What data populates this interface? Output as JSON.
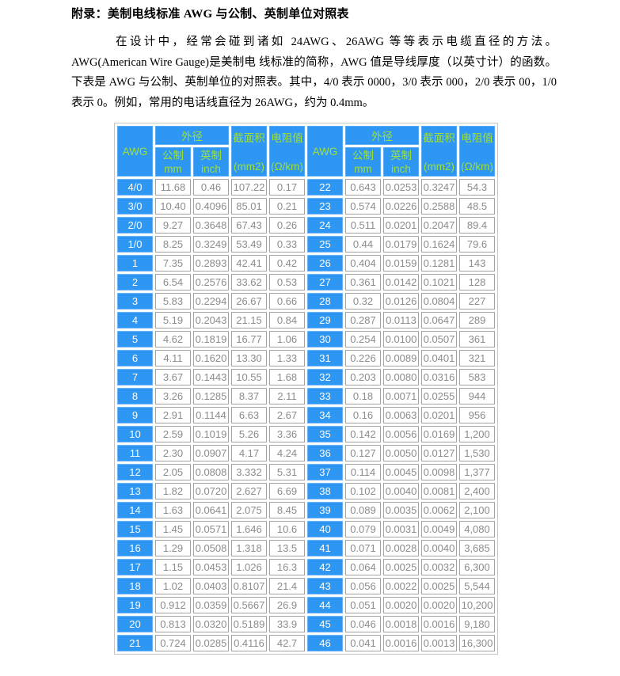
{
  "page": {
    "title": "附录：美制电线标准 AWG 与公制、英制单位对照表",
    "paragraph": "在设计中，经常会碰到诸如 24AWG、26AWG 等等表示电缆直径的方法。AWG(American Wire Gauge)是美制电 线标准的简称，AWG 值是导线厚度（以英寸计）的函数。下表是 AWG 与公制、英制单位的对照表。其中，4/0 表示 0000，3/0 表示 000，2/0 表示 00，1/0 表示 0。例如，常用的电话线直径为 26AWG，约为 0.4mm。"
  },
  "colors": {
    "header_blue": "#2e96f3",
    "header_text_green": "#9ee03c",
    "awg_cell_text": "#ffffff",
    "data_text_gray": "#8c8c8c",
    "cell_border_gray": "#a3a3a3",
    "table_outer_border": "#c6c6c6"
  },
  "table": {
    "header": {
      "awg": "AWG",
      "outer_diameter": "外径",
      "metric_label": "公制",
      "metric_unit": "mm",
      "imperial_label": "英制",
      "imperial_unit": "inch",
      "cross_section_label": "截面积",
      "cross_section_unit": "(mm2)",
      "resistance_label": "电阻值",
      "resistance_unit": "(Ω/km)"
    },
    "left_rows": [
      {
        "awg": "4/0",
        "mm": "11.68",
        "inch": "0.46",
        "mm2": "107.22",
        "ohm_per_km": "0.17"
      },
      {
        "awg": "3/0",
        "mm": "10.40",
        "inch": "0.4096",
        "mm2": "85.01",
        "ohm_per_km": "0.21"
      },
      {
        "awg": "2/0",
        "mm": "9.27",
        "inch": "0.3648",
        "mm2": "67.43",
        "ohm_per_km": "0.26"
      },
      {
        "awg": "1/0",
        "mm": "8.25",
        "inch": "0.3249",
        "mm2": "53.49",
        "ohm_per_km": "0.33"
      },
      {
        "awg": "1",
        "mm": "7.35",
        "inch": "0.2893",
        "mm2": "42.41",
        "ohm_per_km": "0.42"
      },
      {
        "awg": "2",
        "mm": "6.54",
        "inch": "0.2576",
        "mm2": "33.62",
        "ohm_per_km": "0.53"
      },
      {
        "awg": "3",
        "mm": "5.83",
        "inch": "0.2294",
        "mm2": "26.67",
        "ohm_per_km": "0.66"
      },
      {
        "awg": "4",
        "mm": "5.19",
        "inch": "0.2043",
        "mm2": "21.15",
        "ohm_per_km": "0.84"
      },
      {
        "awg": "5",
        "mm": "4.62",
        "inch": "0.1819",
        "mm2": "16.77",
        "ohm_per_km": "1.06"
      },
      {
        "awg": "6",
        "mm": "4.11",
        "inch": "0.1620",
        "mm2": "13.30",
        "ohm_per_km": "1.33"
      },
      {
        "awg": "7",
        "mm": "3.67",
        "inch": "0.1443",
        "mm2": "10.55",
        "ohm_per_km": "1.68"
      },
      {
        "awg": "8",
        "mm": "3.26",
        "inch": "0.1285",
        "mm2": "8.37",
        "ohm_per_km": "2.11"
      },
      {
        "awg": "9",
        "mm": "2.91",
        "inch": "0.1144",
        "mm2": "6.63",
        "ohm_per_km": "2.67"
      },
      {
        "awg": "10",
        "mm": "2.59",
        "inch": "0.1019",
        "mm2": "5.26",
        "ohm_per_km": "3.36"
      },
      {
        "awg": "11",
        "mm": "2.30",
        "inch": "0.0907",
        "mm2": "4.17",
        "ohm_per_km": "4.24"
      },
      {
        "awg": "12",
        "mm": "2.05",
        "inch": "0.0808",
        "mm2": "3.332",
        "ohm_per_km": "5.31"
      },
      {
        "awg": "13",
        "mm": "1.82",
        "inch": "0.0720",
        "mm2": "2.627",
        "ohm_per_km": "6.69"
      },
      {
        "awg": "14",
        "mm": "1.63",
        "inch": "0.0641",
        "mm2": "2.075",
        "ohm_per_km": "8.45"
      },
      {
        "awg": "15",
        "mm": "1.45",
        "inch": "0.0571",
        "mm2": "1.646",
        "ohm_per_km": "10.6"
      },
      {
        "awg": "16",
        "mm": "1.29",
        "inch": "0.0508",
        "mm2": "1.318",
        "ohm_per_km": "13.5"
      },
      {
        "awg": "17",
        "mm": "1.15",
        "inch": "0.0453",
        "mm2": "1.026",
        "ohm_per_km": "16.3"
      },
      {
        "awg": "18",
        "mm": "1.02",
        "inch": "0.0403",
        "mm2": "0.8107",
        "ohm_per_km": "21.4"
      },
      {
        "awg": "19",
        "mm": "0.912",
        "inch": "0.0359",
        "mm2": "0.5667",
        "ohm_per_km": "26.9"
      },
      {
        "awg": "20",
        "mm": "0.813",
        "inch": "0.0320",
        "mm2": "0.5189",
        "ohm_per_km": "33.9"
      },
      {
        "awg": "21",
        "mm": "0.724",
        "inch": "0.0285",
        "mm2": "0.4116",
        "ohm_per_km": "42.7"
      }
    ],
    "right_rows": [
      {
        "awg": "22",
        "mm": "0.643",
        "inch": "0.0253",
        "mm2": "0.3247",
        "ohm_per_km": "54.3"
      },
      {
        "awg": "23",
        "mm": "0.574",
        "inch": "0.0226",
        "mm2": "0.2588",
        "ohm_per_km": "48.5"
      },
      {
        "awg": "24",
        "mm": "0.511",
        "inch": "0.0201",
        "mm2": "0.2047",
        "ohm_per_km": "89.4"
      },
      {
        "awg": "25",
        "mm": "0.44",
        "inch": "0.0179",
        "mm2": "0.1624",
        "ohm_per_km": "79.6"
      },
      {
        "awg": "26",
        "mm": "0.404",
        "inch": "0.0159",
        "mm2": "0.1281",
        "ohm_per_km": "143"
      },
      {
        "awg": "27",
        "mm": "0.361",
        "inch": "0.0142",
        "mm2": "0.1021",
        "ohm_per_km": "128"
      },
      {
        "awg": "28",
        "mm": "0.32",
        "inch": "0.0126",
        "mm2": "0.0804",
        "ohm_per_km": "227"
      },
      {
        "awg": "29",
        "mm": "0.287",
        "inch": "0.0113",
        "mm2": "0.0647",
        "ohm_per_km": "289"
      },
      {
        "awg": "30",
        "mm": "0.254",
        "inch": "0.0100",
        "mm2": "0.0507",
        "ohm_per_km": "361"
      },
      {
        "awg": "31",
        "mm": "0.226",
        "inch": "0.0089",
        "mm2": "0.0401",
        "ohm_per_km": "321"
      },
      {
        "awg": "32",
        "mm": "0.203",
        "inch": "0.0080",
        "mm2": "0.0316",
        "ohm_per_km": "583"
      },
      {
        "awg": "33",
        "mm": "0.18",
        "inch": "0.0071",
        "mm2": "0.0255",
        "ohm_per_km": "944"
      },
      {
        "awg": "34",
        "mm": "0.16",
        "inch": "0.0063",
        "mm2": "0.0201",
        "ohm_per_km": "956"
      },
      {
        "awg": "35",
        "mm": "0.142",
        "inch": "0.0056",
        "mm2": "0.0169",
        "ohm_per_km": "1,200"
      },
      {
        "awg": "36",
        "mm": "0.127",
        "inch": "0.0050",
        "mm2": "0.0127",
        "ohm_per_km": "1,530"
      },
      {
        "awg": "37",
        "mm": "0.114",
        "inch": "0.0045",
        "mm2": "0.0098",
        "ohm_per_km": "1,377"
      },
      {
        "awg": "38",
        "mm": "0.102",
        "inch": "0.0040",
        "mm2": "0.0081",
        "ohm_per_km": "2,400"
      },
      {
        "awg": "39",
        "mm": "0.089",
        "inch": "0.0035",
        "mm2": "0.0062",
        "ohm_per_km": "2,100"
      },
      {
        "awg": "40",
        "mm": "0.079",
        "inch": "0.0031",
        "mm2": "0.0049",
        "ohm_per_km": "4,080"
      },
      {
        "awg": "41",
        "mm": "0.071",
        "inch": "0.0028",
        "mm2": "0.0040",
        "ohm_per_km": "3,685"
      },
      {
        "awg": "42",
        "mm": "0.064",
        "inch": "0.0025",
        "mm2": "0.0032",
        "ohm_per_km": "6,300"
      },
      {
        "awg": "43",
        "mm": "0.056",
        "inch": "0.0022",
        "mm2": "0.0025",
        "ohm_per_km": "5,544"
      },
      {
        "awg": "44",
        "mm": "0.051",
        "inch": "0.0020",
        "mm2": "0.0020",
        "ohm_per_km": "10,200"
      },
      {
        "awg": "45",
        "mm": "0.046",
        "inch": "0.0018",
        "mm2": "0.0016",
        "ohm_per_km": "9,180"
      },
      {
        "awg": "46",
        "mm": "0.041",
        "inch": "0.0016",
        "mm2": "0.0013",
        "ohm_per_km": "16,300"
      }
    ]
  }
}
